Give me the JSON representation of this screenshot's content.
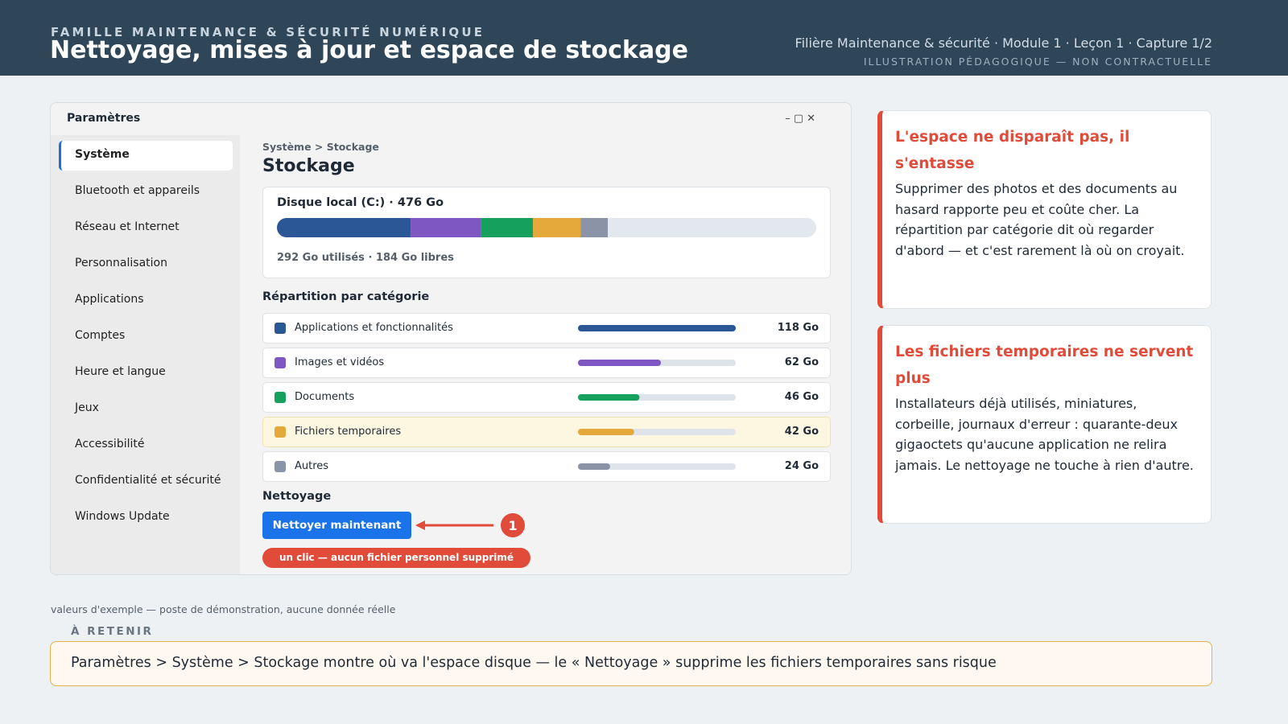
{
  "header": {
    "kicker": "FAMILLE MAINTENANCE & SÉCURITÉ NUMÉRIQUE",
    "title": "Nettoyage, mises à jour et espace de stockage",
    "meta": "Filière Maintenance & sécurité · Module 1 · Leçon 1 · Capture 1/2",
    "disclaimer": "ILLUSTRATION PÉDAGOGIQUE — NON CONTRACTUELLE"
  },
  "window": {
    "title": "Paramètres",
    "controls": [
      "–",
      "▢",
      "✕"
    ],
    "sidebar": [
      "Système",
      "Bluetooth et appareils",
      "Réseau et Internet",
      "Personnalisation",
      "Applications",
      "Comptes",
      "Heure et langue",
      "Jeux",
      "Accessibilité",
      "Confidentialité et sécurité",
      "Windows Update"
    ],
    "breadcrumb": "Système > Stockage",
    "heading": "Stockage",
    "disk": {
      "label": "Disque local (C:) · 476 Go",
      "capacity": 476,
      "summary": "292 Go utilisés · 184 Go libres"
    },
    "breakdown_title": "Répartition par catégorie",
    "categories": [
      {
        "name": "Applications et fonctionnalités",
        "value": 118,
        "value_label": "118 Go",
        "color": "#2b5797"
      },
      {
        "name": "Images et vidéos",
        "value": 62,
        "value_label": "62 Go",
        "color": "#7e57c2"
      },
      {
        "name": "Documents",
        "value": 46,
        "value_label": "46 Go",
        "color": "#16a05d"
      },
      {
        "name": "Fichiers temporaires",
        "value": 42,
        "value_label": "42 Go",
        "color": "#e5a93b",
        "highlight": true
      },
      {
        "name": "Autres",
        "value": 24,
        "value_label": "24 Go",
        "color": "#8a94a6"
      }
    ],
    "cleanup_title": "Nettoyage",
    "button": "Nettoyer maintenant",
    "callout_number": "1",
    "pill": "un clic — aucun fichier personnel supprimé"
  },
  "cards": [
    {
      "title": "L'espace ne disparaît pas, il s'entasse",
      "body": "Supprimer des photos et des documents au hasard rapporte peu et coûte cher. La répartition par catégorie dit où regarder d'abord — et c'est rarement là où on croyait."
    },
    {
      "title": "Les fichiers temporaires ne servent plus",
      "body": "Installateurs déjà utilisés, miniatures, corbeille, journaux d'erreur : quarante-deux gigaoctets qu'aucune application ne relira jamais. Le nettoyage ne touche à rien d'autre."
    }
  ],
  "footnote": "valeurs d'exemple — poste de démonstration, aucune donnée réelle",
  "takeaway": {
    "label": "À RETENIR",
    "text": "Paramètres > Système > Stockage montre où va l'espace disque — le « Nettoyage » supprime les fichiers temporaires sans risque"
  }
}
